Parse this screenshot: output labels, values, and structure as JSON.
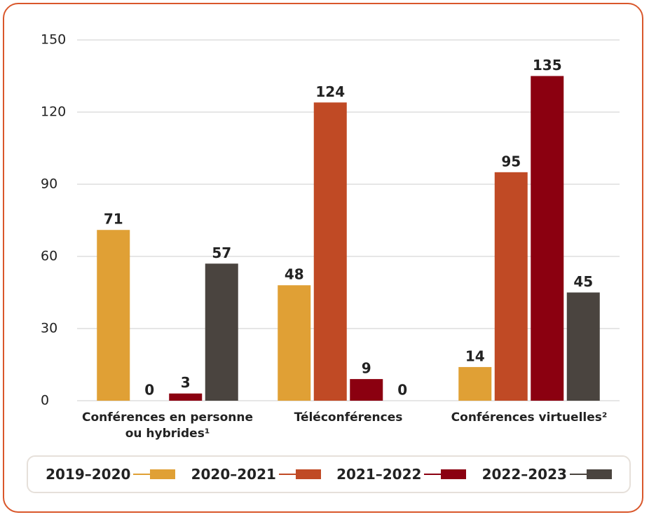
{
  "chart_data": {
    "type": "bar",
    "categories": [
      "Conférences en personne ou hybrides¹",
      "Téléconférences",
      "Conférences virtuelles²"
    ],
    "series": [
      {
        "name": "2019–2020",
        "color": "#e0a035",
        "values": [
          71,
          48,
          14
        ]
      },
      {
        "name": "2020–2021",
        "color": "#c04a25",
        "values": [
          0,
          124,
          95
        ]
      },
      {
        "name": "2021–2022",
        "color": "#8b0010",
        "values": [
          3,
          9,
          135
        ]
      },
      {
        "name": "2022–2023",
        "color": "#4a443f",
        "values": [
          57,
          0,
          45
        ]
      }
    ],
    "ylim": [
      0,
      150
    ],
    "yticks": [
      0,
      30,
      60,
      90,
      120,
      150
    ],
    "grid": true,
    "legend": "bottom"
  }
}
